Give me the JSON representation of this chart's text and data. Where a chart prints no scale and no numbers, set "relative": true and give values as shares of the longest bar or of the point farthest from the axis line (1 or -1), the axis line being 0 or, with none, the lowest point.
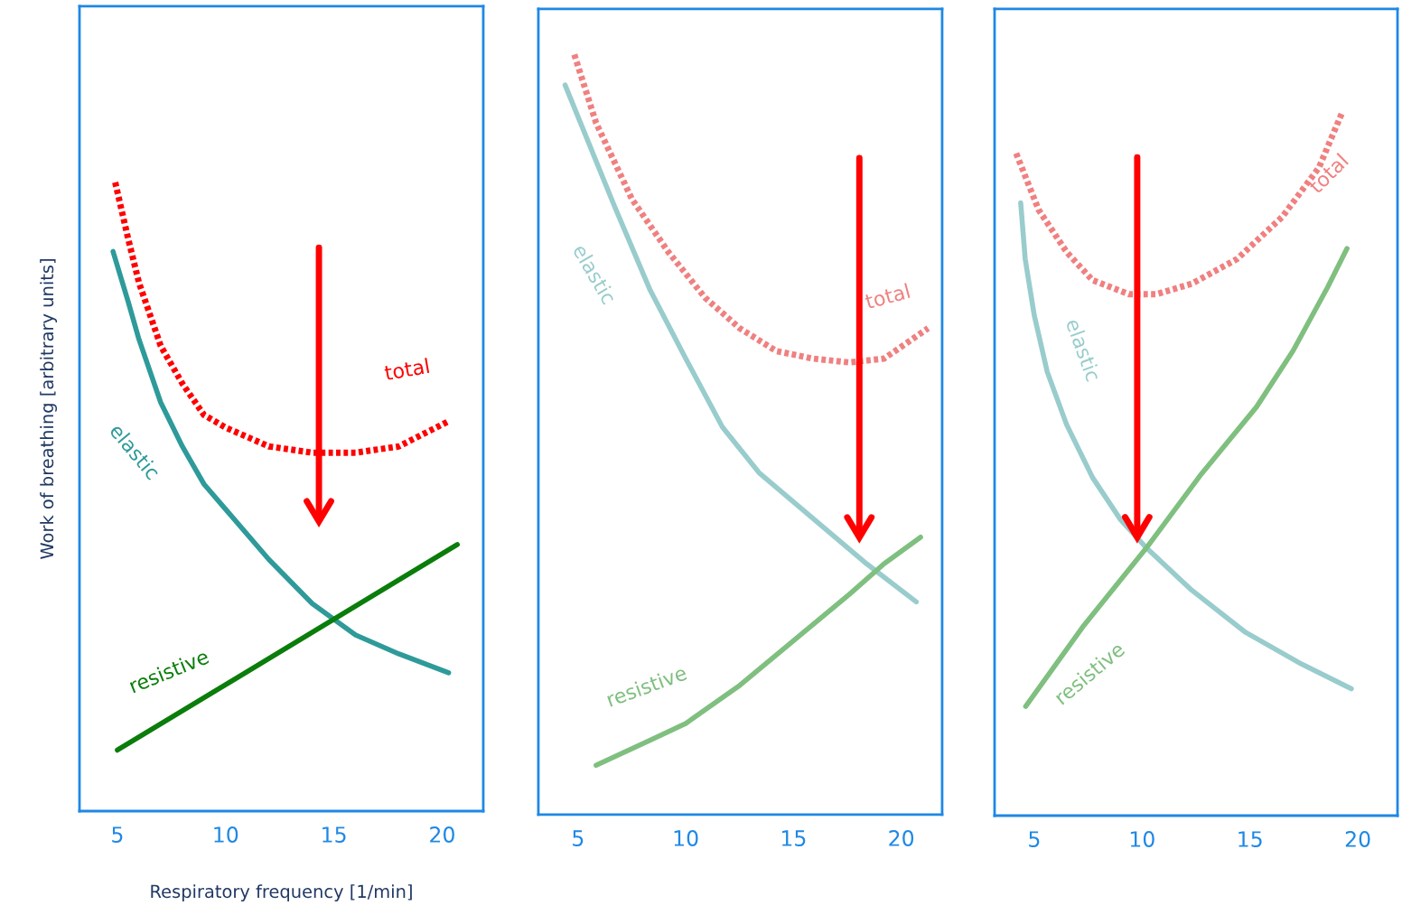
{
  "chart_data": [
    {
      "type": "line",
      "relative": true,
      "xlabel": "Respiratory frequency [1/min]",
      "ylabel": "Work of breathing [arbitrary units]",
      "xlim": [
        3.25,
        21.9
      ],
      "xticks": [
        5,
        10,
        15,
        20
      ],
      "grid": false,
      "legend": false,
      "marker": "none",
      "series": [
        {
          "name": "elastic",
          "color": "#2e9a9a",
          "line_style": "solid",
          "x": [
            4.8,
            5.5,
            6,
            7,
            8,
            9,
            10,
            12,
            14,
            16,
            18,
            20.3
          ],
          "values": [
            0.89,
            0.81,
            0.75,
            0.65,
            0.58,
            0.52,
            0.48,
            0.4,
            0.33,
            0.28,
            0.25,
            0.22
          ]
        },
        {
          "name": "resistive",
          "color": "#0a7d0a",
          "line_style": "solid",
          "x": [
            5,
            20.7
          ],
          "values": [
            0.097,
            0.424
          ]
        },
        {
          "name": "total",
          "color": "#ff0000",
          "line_style": "dotted",
          "x": [
            4.9,
            5.5,
            6,
            7,
            8,
            9,
            10,
            12,
            14,
            16,
            18,
            20.3
          ],
          "values": [
            1.0,
            0.91,
            0.84,
            0.74,
            0.68,
            0.63,
            0.61,
            0.58,
            0.57,
            0.57,
            0.58,
            0.62
          ]
        }
      ]
    },
    {
      "type": "line",
      "relative": true,
      "xlim": [
        3.16,
        21.9
      ],
      "xticks": [
        5,
        10,
        15,
        20
      ],
      "grid": false,
      "legend": false,
      "marker": "none",
      "series": [
        {
          "name": "elastic",
          "color": "#99cccc",
          "line_style": "solid",
          "x": [
            4.4,
            6.7,
            8.35,
            10,
            11.7,
            13.4,
            15.9,
            18.4,
            20.7
          ],
          "values": [
            0.96,
            0.8,
            0.69,
            0.6,
            0.51,
            0.45,
            0.39,
            0.33,
            0.28
          ]
        },
        {
          "name": "resistive",
          "color": "#7fbf7f",
          "line_style": "solid",
          "x": [
            5.84,
            8.35,
            10,
            12.5,
            15.05,
            17.6,
            19.2,
            20.9
          ],
          "values": [
            0.065,
            0.098,
            0.12,
            0.17,
            0.23,
            0.29,
            0.33,
            0.365
          ]
        },
        {
          "name": "total",
          "color": "#f08080",
          "line_style": "dotted",
          "x": [
            4.83,
            5.84,
            7.5,
            9.2,
            10.9,
            12.5,
            14.2,
            15.9,
            17.6,
            19.2,
            21.25
          ],
          "values": [
            1.0,
            0.91,
            0.81,
            0.74,
            0.68,
            0.64,
            0.61,
            0.6,
            0.595,
            0.6,
            0.64
          ]
        }
      ]
    },
    {
      "type": "line",
      "relative": true,
      "xlim": [
        3.16,
        21.84
      ],
      "xticks": [
        5,
        10,
        15,
        20
      ],
      "grid": false,
      "legend": false,
      "marker": "none",
      "series": [
        {
          "name": "elastic",
          "color": "#99cccc",
          "line_style": "solid",
          "x": [
            4.37,
            4.58,
            5,
            5.6,
            6.5,
            7.7,
            9.0,
            10.2,
            12.3,
            14.8,
            17.4,
            19.7
          ],
          "values": [
            0.87,
            0.79,
            0.71,
            0.63,
            0.555,
            0.48,
            0.42,
            0.38,
            0.32,
            0.26,
            0.215,
            0.18
          ]
        },
        {
          "name": "resistive",
          "color": "#7fbf7f",
          "line_style": "solid",
          "x": [
            4.6,
            7.3,
            10.2,
            12.75,
            15.3,
            17.0,
            18.6,
            19.5
          ],
          "values": [
            0.155,
            0.27,
            0.38,
            0.485,
            0.58,
            0.66,
            0.75,
            0.805
          ]
        },
        {
          "name": "total",
          "color": "#f08080",
          "line_style": "dotted",
          "x": [
            4.16,
            5.2,
            6.5,
            7.7,
            9.4,
            10.65,
            12.3,
            14.4,
            16.5,
            18.2,
            19.3
          ],
          "values": [
            0.94,
            0.86,
            0.8,
            0.76,
            0.74,
            0.74,
            0.755,
            0.79,
            0.85,
            0.92,
            1.0
          ]
        }
      ]
    }
  ]
}
